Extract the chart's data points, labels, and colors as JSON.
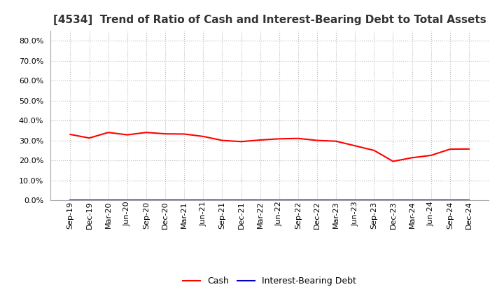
{
  "title": "[4534]  Trend of Ratio of Cash and Interest-Bearing Debt to Total Assets",
  "x_labels": [
    "Sep-19",
    "Dec-19",
    "Mar-20",
    "Jun-20",
    "Sep-20",
    "Dec-20",
    "Mar-21",
    "Jun-21",
    "Sep-21",
    "Dec-21",
    "Mar-22",
    "Jun-22",
    "Sep-22",
    "Dec-22",
    "Mar-23",
    "Jun-23",
    "Sep-23",
    "Dec-23",
    "Mar-24",
    "Jun-24",
    "Sep-24",
    "Dec-24"
  ],
  "cash_values": [
    0.33,
    0.312,
    0.34,
    0.328,
    0.34,
    0.333,
    0.332,
    0.32,
    0.3,
    0.294,
    0.302,
    0.308,
    0.31,
    0.3,
    0.296,
    0.273,
    0.25,
    0.195,
    0.213,
    0.225,
    0.256,
    0.257
  ],
  "ibd_values": [
    0.0,
    0.0,
    0.0,
    0.0,
    0.0,
    0.0,
    0.0,
    0.0,
    0.0,
    0.0,
    0.0,
    0.0,
    0.0,
    0.0,
    0.0,
    0.0,
    0.0,
    0.0,
    0.0,
    0.0,
    0.0,
    0.0
  ],
  "cash_color": "#ff0000",
  "ibd_color": "#0000cc",
  "ylim": [
    0.0,
    0.85
  ],
  "yticks": [
    0.0,
    0.1,
    0.2,
    0.3,
    0.4,
    0.5,
    0.6,
    0.7,
    0.8
  ],
  "background_color": "#ffffff",
  "plot_bg_color": "#ffffff",
  "grid_color": "#bbbbbb",
  "title_fontsize": 11,
  "tick_fontsize": 8,
  "legend_labels": [
    "Cash",
    "Interest-Bearing Debt"
  ]
}
